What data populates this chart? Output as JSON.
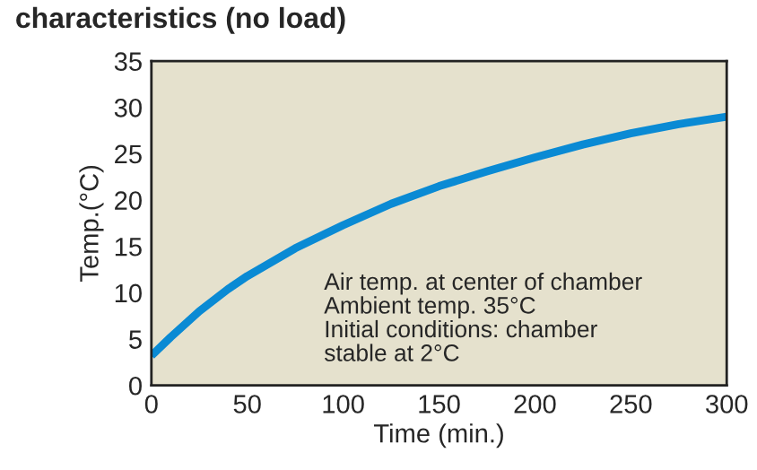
{
  "chart_data": {
    "type": "line",
    "title": "characteristics (no load)",
    "xlabel": "Time (min.)",
    "ylabel": "Temp.(°C)",
    "x": [
      0,
      10,
      25,
      40,
      50,
      75,
      100,
      125,
      150,
      175,
      200,
      225,
      250,
      275,
      300
    ],
    "series": [
      {
        "color": "#0a8ad4",
        "values": [
          3.2,
          5.2,
          8.0,
          10.4,
          11.8,
          14.8,
          17.3,
          19.6,
          21.5,
          23.1,
          24.6,
          26.0,
          27.2,
          28.2,
          29.0
        ]
      }
    ],
    "xlim": [
      0,
      300
    ],
    "ylim": [
      0,
      35
    ],
    "xticks": [
      0,
      50,
      100,
      150,
      200,
      250,
      300
    ],
    "yticks": [
      0,
      5,
      10,
      15,
      20,
      25,
      30,
      35
    ],
    "grid": false,
    "legend": false,
    "marker": "none",
    "line_style": "solid",
    "annotations": [
      "Air temp. at center of chamber\nAmbient temp. 35°C\nInitial conditions: chamber\nstable at 2°C"
    ]
  }
}
